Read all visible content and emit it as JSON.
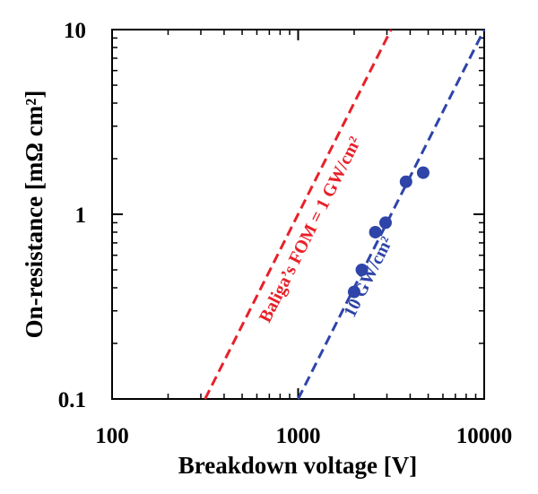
{
  "chart_data": {
    "type": "scatter",
    "xlabel": "Breakdown  voltage [V]",
    "ylabel": "On-resistance [mΩ cm²]",
    "x_scale": "log",
    "y_scale": "log",
    "xlim": [
      100,
      10000
    ],
    "ylim": [
      0.1,
      10
    ],
    "x_tick_labels": [
      "100",
      "1000",
      "10000"
    ],
    "x_tick_values": [
      100,
      1000,
      10000
    ],
    "y_tick_labels": [
      "0.1",
      "1",
      "10"
    ],
    "y_tick_values": [
      0.1,
      1,
      10
    ],
    "grid": false,
    "series": [
      {
        "type": "scatter",
        "color": "#2E44A8",
        "points": [
          {
            "x": 2000,
            "y": 0.38
          },
          {
            "x": 2200,
            "y": 0.5
          },
          {
            "x": 2600,
            "y": 0.8
          },
          {
            "x": 2950,
            "y": 0.9
          },
          {
            "x": 3800,
            "y": 1.5
          },
          {
            "x": 4700,
            "y": 1.68
          }
        ]
      }
    ],
    "reference_lines": [
      {
        "label": "Baliga’s FOM = 1 GW/cm²",
        "color": "#E8202A",
        "style": "dashed",
        "points": [
          {
            "x": 316,
            "y": 0.1
          },
          {
            "x": 3160,
            "y": 10
          }
        ]
      },
      {
        "label": "10 GW/cm²",
        "color": "#2E44A8",
        "style": "dashed",
        "points": [
          {
            "x": 1000,
            "y": 0.1
          },
          {
            "x": 10000,
            "y": 10
          }
        ]
      }
    ]
  }
}
